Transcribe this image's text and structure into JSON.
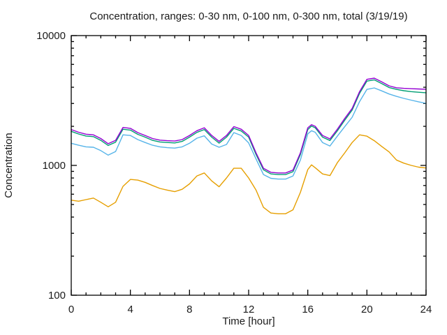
{
  "chart_data": {
    "type": "line",
    "title": "Concentration, ranges: 0-30 nm, 0-100 nm, 0-300 nm, total (3/19/19)",
    "xlabel": "Time [hour]",
    "ylabel": "Concentration",
    "grid": false,
    "legend_position": "none",
    "axis_color": "#000000",
    "text_color": "#1a1a1a",
    "x_axis": {
      "min": 0,
      "max": 24,
      "scale": "linear",
      "major_ticks": [
        0,
        4,
        8,
        12,
        16,
        20,
        24
      ],
      "major_tick_labels": [
        "0",
        "4",
        "8",
        "12",
        "16",
        "20",
        "24"
      ],
      "minor_tick_step": 1
    },
    "y_axis": {
      "min": 100,
      "max": 10000,
      "scale": "log",
      "major_ticks": [
        100,
        1000,
        10000
      ],
      "major_tick_labels": [
        "100",
        "1000",
        "10000"
      ],
      "minor_ticks": [
        200,
        300,
        400,
        500,
        600,
        700,
        800,
        900,
        2000,
        3000,
        4000,
        5000,
        6000,
        7000,
        8000,
        9000
      ]
    },
    "x": [
      0,
      0.5,
      1,
      1.5,
      2,
      2.5,
      3,
      3.5,
      4,
      4.5,
      5,
      5.5,
      6,
      6.5,
      7,
      7.5,
      8,
      8.5,
      9,
      9.5,
      10,
      10.5,
      11,
      11.5,
      12,
      12.5,
      13,
      13.5,
      14,
      14.5,
      15,
      15.5,
      16,
      16.25,
      16.5,
      17,
      17.5,
      18,
      18.5,
      19,
      19.5,
      20,
      20.5,
      21,
      21.5,
      22,
      22.5,
      23,
      23.5,
      24
    ],
    "series": [
      {
        "name": "0-30 nm",
        "color": "#e69f00",
        "values": [
          540,
          530,
          545,
          560,
          520,
          480,
          520,
          690,
          780,
          770,
          740,
          700,
          665,
          645,
          628,
          655,
          720,
          830,
          875,
          760,
          685,
          800,
          950,
          950,
          800,
          645,
          475,
          430,
          424,
          424,
          455,
          620,
          930,
          1010,
          960,
          860,
          835,
          1050,
          1250,
          1500,
          1720,
          1680,
          1550,
          1400,
          1270,
          1100,
          1040,
          1000,
          970,
          955
        ]
      },
      {
        "name": "0-100 nm",
        "color": "#56b4e9",
        "values": [
          1480,
          1430,
          1390,
          1380,
          1300,
          1200,
          1280,
          1720,
          1700,
          1580,
          1500,
          1430,
          1390,
          1370,
          1360,
          1390,
          1480,
          1620,
          1690,
          1460,
          1380,
          1450,
          1790,
          1700,
          1490,
          1120,
          850,
          795,
          785,
          785,
          830,
          1100,
          1750,
          1850,
          1800,
          1500,
          1410,
          1680,
          1990,
          2350,
          3100,
          3850,
          3950,
          3750,
          3550,
          3400,
          3280,
          3180,
          3090,
          3010
        ]
      },
      {
        "name": "0-300 nm",
        "color": "#009e73",
        "values": [
          1830,
          1745,
          1685,
          1665,
          1560,
          1425,
          1510,
          1900,
          1870,
          1735,
          1650,
          1560,
          1515,
          1500,
          1490,
          1530,
          1650,
          1795,
          1890,
          1650,
          1485,
          1650,
          1930,
          1840,
          1650,
          1215,
          925,
          860,
          850,
          850,
          895,
          1215,
          1890,
          2010,
          1950,
          1650,
          1555,
          1845,
          2230,
          2670,
          3590,
          4460,
          4560,
          4270,
          3980,
          3850,
          3760,
          3700,
          3660,
          3630
        ]
      },
      {
        "name": "total",
        "color": "#9400d3",
        "values": [
          1890,
          1800,
          1740,
          1720,
          1610,
          1470,
          1560,
          1960,
          1930,
          1790,
          1700,
          1610,
          1565,
          1550,
          1540,
          1580,
          1700,
          1850,
          1950,
          1700,
          1530,
          1700,
          1990,
          1900,
          1700,
          1250,
          950,
          885,
          875,
          875,
          920,
          1250,
          1950,
          2060,
          2000,
          1700,
          1600,
          1900,
          2300,
          2750,
          3700,
          4600,
          4700,
          4400,
          4100,
          3960,
          3920,
          3900,
          3880,
          3860
        ]
      }
    ]
  }
}
